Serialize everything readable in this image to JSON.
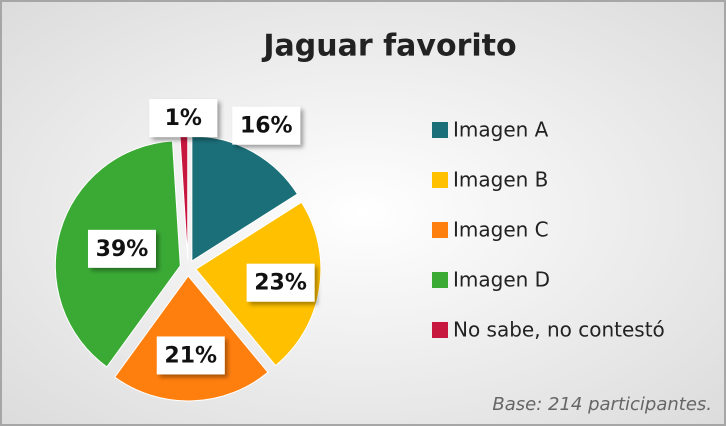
{
  "chart_data": {
    "type": "pie",
    "title": "Jaguar favorito",
    "categories": [
      "Imagen A",
      "Imagen B",
      "Imagen C",
      "Imagen D",
      "No sabe, no contestó"
    ],
    "values": [
      16,
      23,
      21,
      39,
      1
    ],
    "value_labels": [
      "16%",
      "23%",
      "21%",
      "39%",
      "1%"
    ],
    "colors": [
      "#1b6f79",
      "#ffc000",
      "#ff7f0e",
      "#3aaa35",
      "#c8173f"
    ],
    "legend": "right",
    "annotation": "Base: 214 participantes."
  }
}
